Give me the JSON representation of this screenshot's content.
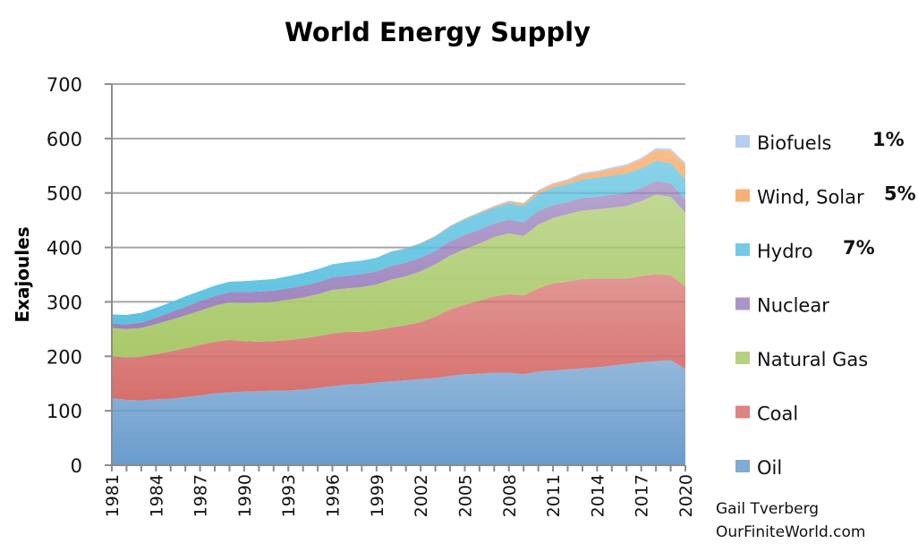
{
  "chart_data": {
    "type": "area",
    "stacked": true,
    "title": "World Energy Supply",
    "xlabel": "",
    "ylabel": "Exajoules",
    "ylim": [
      0,
      700
    ],
    "yticks": [
      0,
      100,
      200,
      300,
      400,
      500,
      600,
      700
    ],
    "xticks": [
      1981,
      1984,
      1987,
      1990,
      1993,
      1996,
      1999,
      2002,
      2005,
      2008,
      2011,
      2014,
      2017,
      2020
    ],
    "grid": true,
    "legend_position": "right",
    "x": [
      1981,
      1982,
      1983,
      1984,
      1985,
      1986,
      1987,
      1988,
      1989,
      1990,
      1991,
      1992,
      1993,
      1994,
      1995,
      1996,
      1997,
      1998,
      1999,
      2000,
      2001,
      2002,
      2003,
      2004,
      2005,
      2006,
      2007,
      2008,
      2009,
      2010,
      2011,
      2012,
      2013,
      2014,
      2015,
      2016,
      2017,
      2018,
      2019,
      2020
    ],
    "series": [
      {
        "name": "Oil",
        "color": "#6a9ccd",
        "values": [
          123,
          120,
          119,
          121,
          122,
          125,
          128,
          132,
          134,
          135,
          136,
          137,
          137,
          139,
          142,
          145,
          148,
          149,
          152,
          154,
          156,
          158,
          160,
          164,
          167,
          168,
          170,
          170,
          167,
          172,
          174,
          176,
          178,
          180,
          183,
          186,
          189,
          191,
          193,
          177
        ]
      },
      {
        "name": "Coal",
        "color": "#d66f6c",
        "values": [
          77,
          78,
          80,
          83,
          87,
          90,
          93,
          95,
          96,
          93,
          91,
          91,
          93,
          94,
          95,
          97,
          97,
          96,
          96,
          99,
          101,
          105,
          113,
          122,
          128,
          134,
          140,
          144,
          145,
          153,
          160,
          161,
          164,
          163,
          160,
          157,
          158,
          160,
          156,
          151
        ]
      },
      {
        "name": "Natural Gas",
        "color": "#a9c96a",
        "values": [
          52,
          52,
          53,
          55,
          58,
          60,
          63,
          66,
          69,
          70,
          72,
          72,
          74,
          75,
          77,
          80,
          80,
          82,
          84,
          88,
          90,
          93,
          96,
          99,
          102,
          105,
          109,
          112,
          109,
          117,
          120,
          124,
          126,
          127,
          130,
          133,
          138,
          146,
          144,
          136
        ]
      },
      {
        "name": "Nuclear",
        "color": "#9b82bd",
        "values": [
          8,
          9,
          10,
          12,
          14,
          16,
          17,
          18,
          19,
          20,
          20,
          21,
          21,
          22,
          22,
          23,
          23,
          24,
          24,
          25,
          25,
          25,
          25,
          26,
          26,
          26,
          25,
          25,
          25,
          25,
          24,
          22,
          23,
          23,
          24,
          24,
          24,
          25,
          25,
          24
        ]
      },
      {
        "name": "Hydro",
        "color": "#5bc1df",
        "values": [
          17,
          17,
          18,
          18,
          18,
          19,
          19,
          19,
          19,
          20,
          21,
          21,
          22,
          23,
          24,
          24,
          25,
          25,
          25,
          26,
          26,
          26,
          26,
          27,
          28,
          29,
          29,
          30,
          30,
          31,
          32,
          33,
          34,
          35,
          35,
          36,
          36,
          37,
          37,
          37
        ]
      },
      {
        "name": "Wind, Solar",
        "color": "#f7a35b",
        "values": [
          0,
          0,
          0,
          0,
          0,
          0,
          0,
          0,
          0,
          0,
          0,
          0,
          0,
          0,
          0,
          0,
          0,
          0,
          0,
          0.5,
          0.5,
          1,
          1,
          1,
          1.5,
          2,
          2,
          3,
          4,
          5,
          6,
          7,
          9,
          10,
          12,
          14,
          17,
          20,
          23,
          27
        ]
      },
      {
        "name": "Biofuels",
        "color": "#a9c4ec",
        "values": [
          0,
          0,
          0,
          0,
          0,
          0,
          0,
          0,
          0,
          0,
          0,
          0,
          0,
          0,
          0,
          0,
          0,
          0,
          0,
          0.5,
          0.5,
          0.5,
          0.5,
          1,
          1,
          1,
          1.5,
          2,
          2,
          2.5,
          2.5,
          2.5,
          3,
          3,
          3,
          3,
          3,
          3.5,
          3.5,
          3.5
        ]
      }
    ],
    "legend": [
      {
        "name": "Biofuels",
        "annotation": "1%"
      },
      {
        "name": "Wind, Solar",
        "annotation": "5%"
      },
      {
        "name": "Hydro",
        "annotation": "7%"
      },
      {
        "name": "Nuclear",
        "annotation": ""
      },
      {
        "name": "Natural Gas",
        "annotation": ""
      },
      {
        "name": "Coal",
        "annotation": ""
      },
      {
        "name": "Oil",
        "annotation": ""
      }
    ],
    "credit": [
      "Gail Tverberg",
      "OurFiniteWorld.com"
    ]
  },
  "colors": {
    "grid": "#a6a6a6",
    "axis": "#8c8c8c"
  }
}
